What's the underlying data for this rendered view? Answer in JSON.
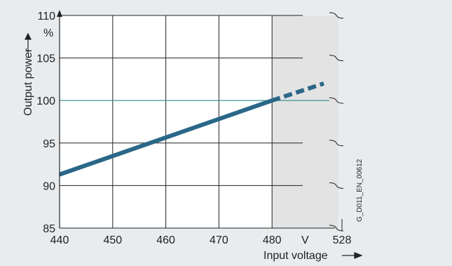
{
  "chart_data": {
    "type": "line",
    "title": "",
    "xlabel": "Input voltage",
    "ylabel": "Output power",
    "x_unit": "V",
    "y_unit": "%",
    "xlim": [
      440,
      528
    ],
    "ylim": [
      85,
      110
    ],
    "x_ticks": [
      "440",
      "450",
      "460",
      "470",
      "480",
      "528"
    ],
    "y_ticks": [
      "85",
      "90",
      "95",
      "100",
      "105",
      "110"
    ],
    "axis_break": "between 480 and 528",
    "reference_line": {
      "y": 100,
      "color": "#2e8b8b"
    },
    "grid": true,
    "shaded_region": {
      "x_from": 480,
      "color": "#e3e3e3"
    },
    "series": [
      {
        "solid": {
          "x": [
            440,
            480
          ],
          "y": [
            91.3,
            100.0
          ]
        },
        "dashed": {
          "x": [
            480,
            489
          ],
          "y": [
            100.0,
            102.0
          ]
        },
        "color": "#2a6788"
      }
    ],
    "figure_id": "G_D011_EN_00612"
  }
}
